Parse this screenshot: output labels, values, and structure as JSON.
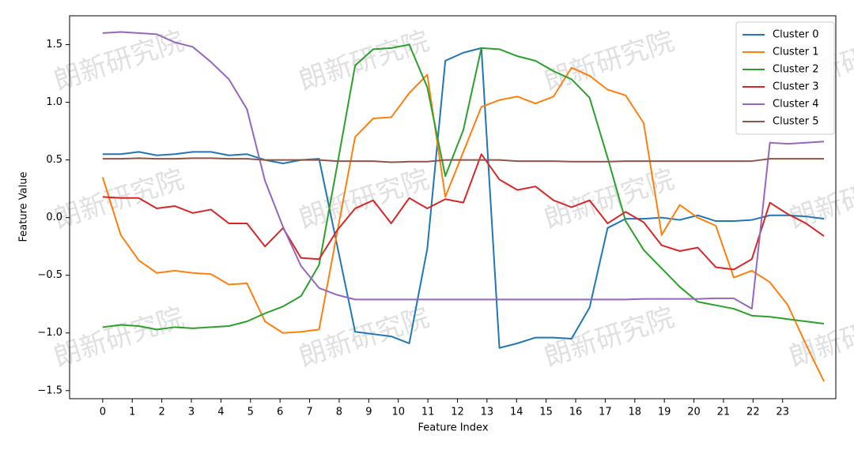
{
  "chart_data": {
    "type": "line",
    "xlabel": "Feature Index",
    "ylabel": "Feature Value",
    "watermark": "朗新研究院",
    "legend": "upper right",
    "xlim": [
      -1.12,
      24.8
    ],
    "ylim": [
      -1.57,
      1.75
    ],
    "xticks": [
      0,
      1,
      2,
      3,
      4,
      5,
      6,
      7,
      8,
      9,
      10,
      11,
      12,
      13,
      14,
      15,
      16,
      17,
      18,
      19,
      20,
      21,
      22,
      23
    ],
    "yticks": [
      {
        "value": -1.5,
        "label": "−1.5"
      },
      {
        "value": -1.0,
        "label": "−1.0"
      },
      {
        "value": -0.5,
        "label": "−0.5"
      },
      {
        "value": 0,
        "label": "0.0"
      },
      {
        "value": 0.5,
        "label": "0.5"
      },
      {
        "value": 1.0,
        "label": "1.0"
      },
      {
        "value": 1.5,
        "label": "1.5"
      }
    ],
    "x": [
      0,
      0.61,
      1.22,
      1.83,
      2.44,
      3.05,
      3.66,
      4.27,
      4.88,
      5.49,
      6.1,
      6.71,
      7.32,
      7.93,
      8.54,
      9.15,
      9.76,
      10.37,
      10.98,
      11.59,
      12.2,
      12.81,
      13.42,
      14.03,
      14.64,
      15.25,
      15.86,
      16.47,
      17.08,
      17.69,
      18.3,
      18.91,
      19.52,
      20.13,
      20.74,
      21.35,
      21.96,
      22.57,
      23.18,
      23.79,
      24.4
    ],
    "series": [
      {
        "name": "Cluster 0",
        "color": "#1f77b4",
        "values": [
          0.55,
          0.55,
          0.57,
          0.54,
          0.55,
          0.57,
          0.57,
          0.54,
          0.55,
          0.5,
          0.47,
          0.5,
          0.51,
          -0.24,
          -0.99,
          -1.01,
          -1.03,
          -1.09,
          -0.27,
          1.36,
          1.43,
          1.47,
          -1.13,
          -1.09,
          -1.04,
          -1.04,
          -1.05,
          -0.78,
          -0.09,
          -0.01,
          -0.01,
          0.0,
          -0.02,
          0.02,
          -0.03,
          -0.03,
          -0.02,
          0.02,
          0.02,
          0.01,
          -0.01
        ]
      },
      {
        "name": "Cluster 1",
        "color": "#ff7f0e",
        "values": [
          0.35,
          -0.15,
          -0.37,
          -0.48,
          -0.46,
          -0.48,
          -0.49,
          -0.58,
          -0.57,
          -0.9,
          -1.0,
          -0.99,
          -0.97,
          -0.13,
          0.7,
          0.86,
          0.87,
          1.08,
          1.24,
          0.18,
          0.57,
          0.96,
          1.02,
          1.05,
          0.99,
          1.05,
          1.3,
          1.23,
          1.11,
          1.06,
          0.82,
          -0.15,
          0.11,
          0.0,
          -0.07,
          -0.52,
          -0.46,
          -0.56,
          -0.76,
          -1.1,
          -1.42
        ]
      },
      {
        "name": "Cluster 2",
        "color": "#2ca02c",
        "values": [
          -0.95,
          -0.93,
          -0.94,
          -0.97,
          -0.95,
          -0.96,
          -0.95,
          -0.94,
          -0.9,
          -0.83,
          -0.77,
          -0.68,
          -0.41,
          0.45,
          1.32,
          1.46,
          1.47,
          1.5,
          1.13,
          0.36,
          0.76,
          1.47,
          1.46,
          1.4,
          1.36,
          1.27,
          1.2,
          1.04,
          0.52,
          -0.03,
          -0.28,
          -0.44,
          -0.6,
          -0.73,
          -0.76,
          -0.79,
          -0.85,
          -0.86,
          -0.88,
          -0.9,
          -0.92
        ]
      },
      {
        "name": "Cluster 3",
        "color": "#d62728",
        "values": [
          0.18,
          0.17,
          0.17,
          0.08,
          0.1,
          0.04,
          0.07,
          -0.05,
          -0.05,
          -0.25,
          -0.09,
          -0.35,
          -0.36,
          -0.11,
          0.08,
          0.15,
          -0.05,
          0.17,
          0.08,
          0.16,
          0.13,
          0.55,
          0.33,
          0.24,
          0.27,
          0.15,
          0.09,
          0.15,
          -0.05,
          0.05,
          -0.04,
          -0.24,
          -0.29,
          -0.26,
          -0.43,
          -0.45,
          -0.36,
          0.13,
          0.03,
          -0.05,
          -0.16
        ]
      },
      {
        "name": "Cluster 4",
        "color": "#9467bd",
        "values": [
          1.6,
          1.61,
          1.6,
          1.59,
          1.52,
          1.48,
          1.35,
          1.2,
          0.94,
          0.32,
          -0.08,
          -0.42,
          -0.61,
          -0.67,
          -0.71,
          -0.71,
          -0.71,
          -0.71,
          -0.71,
          -0.71,
          -0.71,
          -0.71,
          -0.71,
          -0.71,
          -0.71,
          -0.71,
          -0.71,
          -0.71,
          -0.71,
          -0.71,
          -0.705,
          -0.705,
          -0.705,
          -0.705,
          -0.7,
          -0.7,
          -0.79,
          0.65,
          0.64,
          0.65,
          0.66
        ]
      },
      {
        "name": "Cluster 5",
        "color": "#8c564b",
        "values": [
          0.51,
          0.51,
          0.515,
          0.51,
          0.51,
          0.515,
          0.515,
          0.51,
          0.51,
          0.5,
          0.5,
          0.5,
          0.5,
          0.49,
          0.49,
          0.49,
          0.48,
          0.485,
          0.485,
          0.5,
          0.5,
          0.5,
          0.5,
          0.49,
          0.49,
          0.49,
          0.485,
          0.485,
          0.485,
          0.49,
          0.49,
          0.49,
          0.49,
          0.49,
          0.49,
          0.49,
          0.49,
          0.51,
          0.51,
          0.51,
          0.51
        ]
      }
    ]
  }
}
